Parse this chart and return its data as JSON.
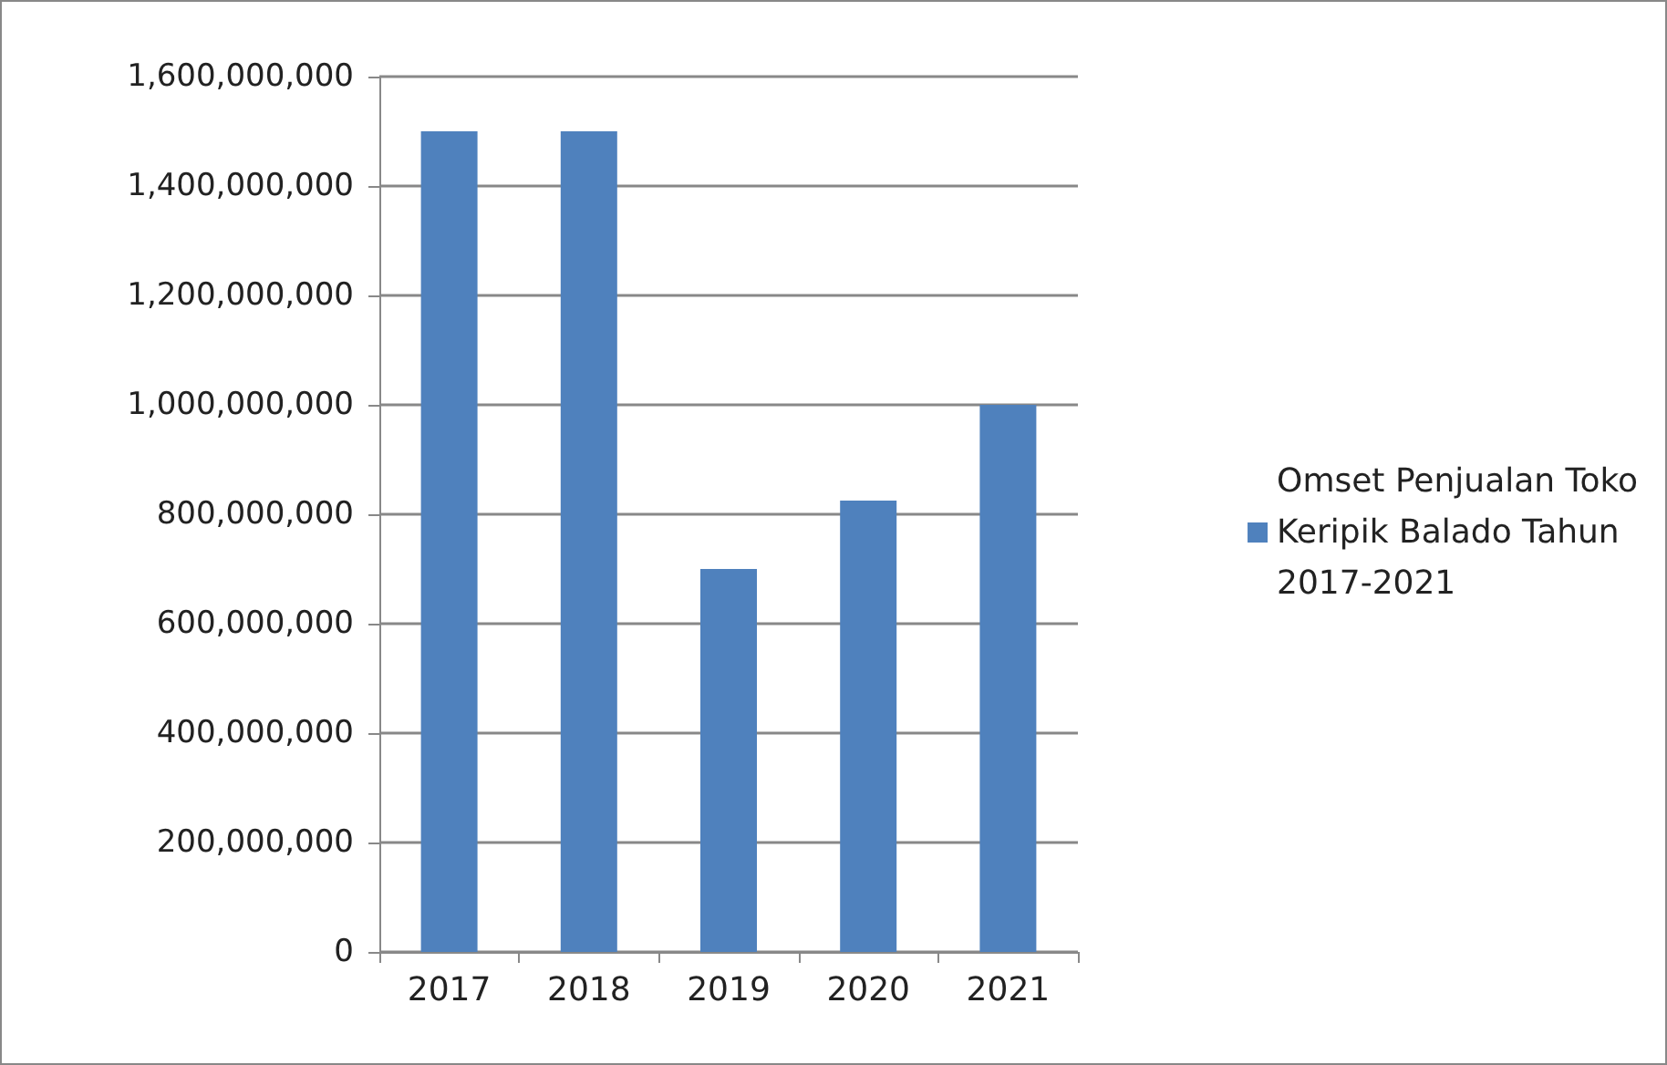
{
  "chart_data": {
    "type": "bar",
    "categories": [
      "2017",
      "2018",
      "2019",
      "2020",
      "2021"
    ],
    "series": [
      {
        "name": "Omset Penjualan Toko Keripik Balado Tahun 2017-2021",
        "color": "#4f81bd",
        "values": [
          1500000000,
          1500000000,
          700000000,
          825000000,
          1000000000
        ]
      }
    ],
    "ylim": [
      0,
      1600000000
    ],
    "yticks": [
      0,
      {
        "value": 200000000,
        "label": "200,000,000"
      },
      {
        "value": 400000000,
        "label": "400,000,000"
      },
      {
        "value": 600000000,
        "label": "600,000,000"
      },
      {
        "value": 800000000,
        "label": "800,000,000"
      },
      {
        "value": 1000000000,
        "label": "1,000,000,000"
      },
      {
        "value": 1200000000,
        "label": "1,200,000,000"
      },
      {
        "value": 1400000000,
        "label": "1,400,000,000"
      },
      {
        "value": 1600000000,
        "label": "1,600,000,000"
      }
    ],
    "grid": "y",
    "legend": "right"
  }
}
